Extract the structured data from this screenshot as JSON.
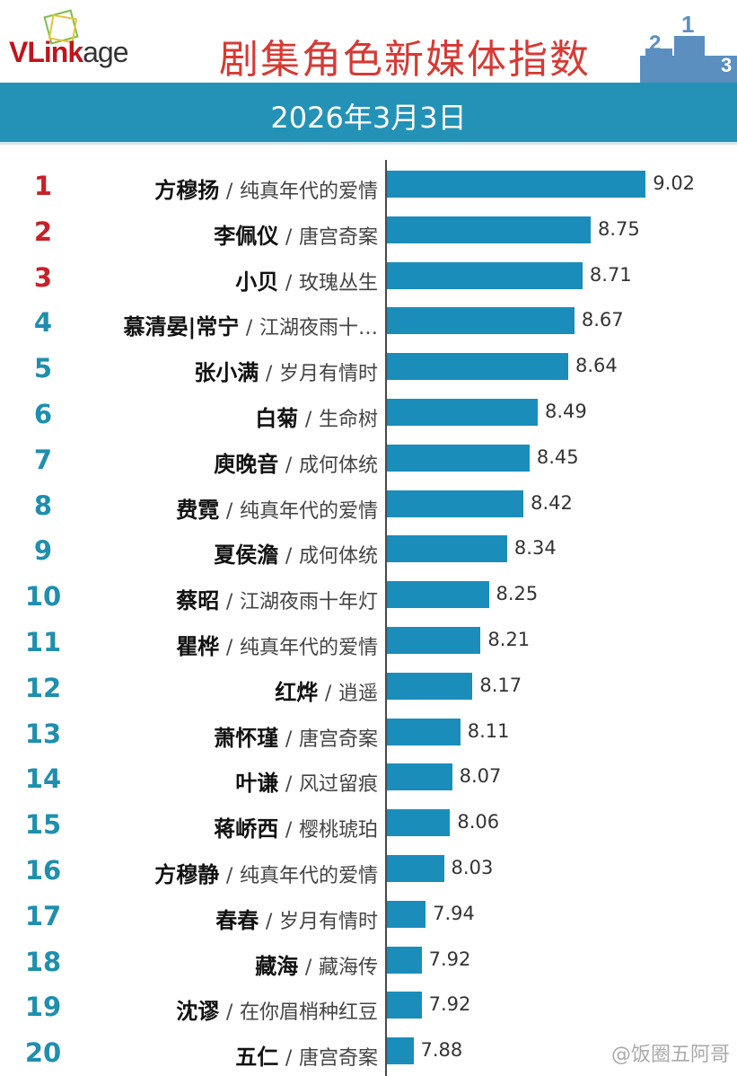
{
  "header": {
    "logo": "VLinkage",
    "title": "剧集角色新媒体指数",
    "date": "2026年3月3日"
  },
  "watermark": "@饭圈五阿哥",
  "colors": {
    "bar": "#1a8dbb",
    "rank_top3": "#c8202a",
    "rank_other": "#1e8fae",
    "band": "#2492b6"
  },
  "chart_data": {
    "type": "bar",
    "orientation": "horizontal",
    "title": "剧集角色新媒体指数",
    "subtitle": "2026年3月3日",
    "ranks": [
      1,
      2,
      3,
      4,
      5,
      6,
      7,
      8,
      9,
      10,
      11,
      12,
      13,
      14,
      15,
      16,
      17,
      18,
      19,
      20
    ],
    "names": [
      "方穆扬",
      "李佩仪",
      "小贝",
      "慕清晏|常宁",
      "张小满",
      "白菊",
      "庾晚音",
      "费霓",
      "夏侯澹",
      "蔡昭",
      "瞿桦",
      "红烨",
      "萧怀瑾",
      "叶谦",
      "蒋峤西",
      "方穆静",
      "春春",
      "藏海",
      "沈谬",
      "五仁"
    ],
    "dramas": [
      "纯真年代的爱情",
      "唐宫奇案",
      "玫瑰丛生",
      "江湖夜雨十…",
      "岁月有情时",
      "生命树",
      "成何体统",
      "纯真年代的爱情",
      "成何体统",
      "江湖夜雨十年灯",
      "纯真年代的爱情",
      "逍遥",
      "唐宫奇案",
      "风过留痕",
      "樱桃琥珀",
      "纯真年代的爱情",
      "岁月有情时",
      "藏海传",
      "在你眉梢种红豆",
      "唐宫奇案"
    ],
    "values": [
      9.02,
      8.75,
      8.71,
      8.67,
      8.64,
      8.49,
      8.45,
      8.42,
      8.34,
      8.25,
      8.21,
      8.17,
      8.11,
      8.07,
      8.06,
      8.03,
      7.94,
      7.92,
      7.92,
      7.88
    ],
    "value_labels": [
      "9.02",
      "8.75",
      "8.71",
      "8.67",
      "8.64",
      "8.49",
      "8.45",
      "8.42",
      "8.34",
      "8.25",
      "8.21",
      "8.17",
      "8.11",
      "8.07",
      "8.06",
      "8.03",
      "7.94",
      "7.92",
      "7.92",
      "7.88"
    ],
    "separator": "/"
  }
}
